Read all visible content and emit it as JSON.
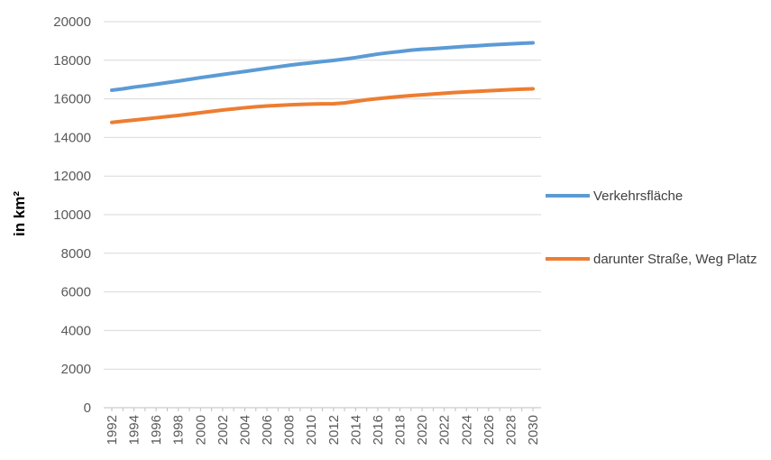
{
  "chart_data": {
    "type": "line",
    "title": "",
    "xlabel": "",
    "ylabel": "in km²",
    "ylim": [
      0,
      20000
    ],
    "yticks": [
      0,
      2000,
      4000,
      6000,
      8000,
      10000,
      12000,
      14000,
      16000,
      18000,
      20000
    ],
    "x": [
      1992,
      1993,
      1994,
      1995,
      1996,
      1997,
      1998,
      1999,
      2000,
      2001,
      2002,
      2003,
      2004,
      2005,
      2006,
      2007,
      2008,
      2009,
      2010,
      2011,
      2012,
      2013,
      2014,
      2015,
      2016,
      2017,
      2018,
      2019,
      2020,
      2021,
      2022,
      2023,
      2024,
      2025,
      2026,
      2027,
      2028,
      2029,
      2030
    ],
    "xticks": [
      1992,
      1994,
      1996,
      1998,
      2000,
      2002,
      2004,
      2006,
      2008,
      2010,
      2012,
      2014,
      2016,
      2018,
      2020,
      2022,
      2024,
      2026,
      2028,
      2030
    ],
    "grid": true,
    "legend_position": "right",
    "series": [
      {
        "name": "Verkehrsfläche",
        "color": "#5b9bd5",
        "values": [
          16450,
          16520,
          16610,
          16680,
          16760,
          16840,
          16920,
          17010,
          17100,
          17180,
          17260,
          17340,
          17420,
          17500,
          17580,
          17660,
          17740,
          17810,
          17870,
          17930,
          17990,
          18060,
          18140,
          18230,
          18320,
          18390,
          18450,
          18520,
          18570,
          18600,
          18640,
          18680,
          18720,
          18750,
          18790,
          18820,
          18850,
          18880,
          18900
        ]
      },
      {
        "name": "darunter Straße, Weg Platz",
        "color": "#ed7d31",
        "values": [
          14780,
          14840,
          14900,
          14960,
          15020,
          15080,
          15140,
          15210,
          15280,
          15350,
          15420,
          15480,
          15540,
          15590,
          15630,
          15660,
          15690,
          15710,
          15730,
          15740,
          15750,
          15790,
          15870,
          15950,
          16010,
          16070,
          16120,
          16170,
          16210,
          16250,
          16290,
          16330,
          16360,
          16390,
          16420,
          16450,
          16480,
          16500,
          16520
        ]
      }
    ]
  }
}
